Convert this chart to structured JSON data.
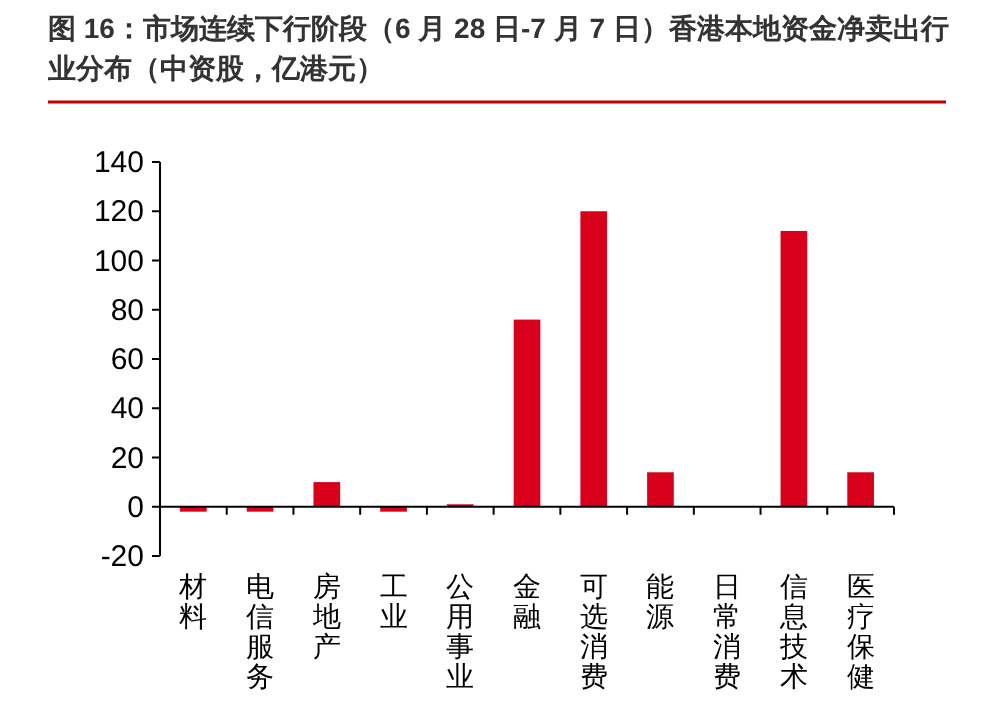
{
  "chart_data": {
    "type": "bar",
    "title": "图 16：市场连续下行阶段（6 月 28 日-7 月 7 日）香港本地资金净卖出行业分布（中资股，亿港元）",
    "categories": [
      "材料",
      "电信服务",
      "房地产",
      "工业",
      "公用事业",
      "金融",
      "可选消费",
      "能源",
      "日常消费",
      "信息技术",
      "医疗保健"
    ],
    "values": [
      -2,
      -2,
      10,
      -2,
      1,
      76,
      120,
      14,
      0,
      112,
      14
    ],
    "color": "#d9001b",
    "ylim": [
      -20,
      140
    ],
    "yticks": [
      -20,
      0,
      20,
      40,
      60,
      80,
      100,
      120,
      140
    ]
  }
}
